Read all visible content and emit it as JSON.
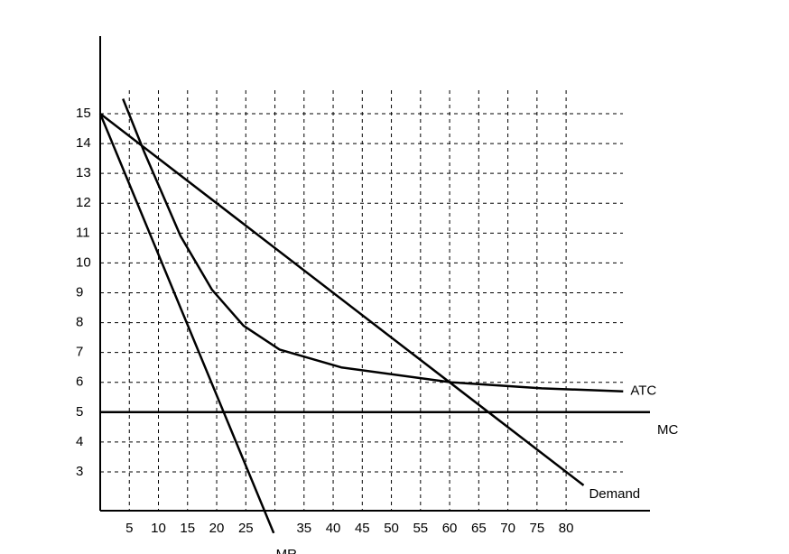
{
  "chart_data": {
    "type": "line",
    "xlim": [
      0,
      94.4
    ],
    "ylim": [
      1.7,
      17.6
    ],
    "xticks": [
      5,
      10,
      15,
      20,
      25,
      {
        "value": 30,
        "label": null
      },
      35,
      40,
      45,
      50,
      55,
      60,
      65,
      70,
      75,
      80
    ],
    "yticks": [
      3,
      4,
      5,
      6,
      7,
      8,
      9,
      10,
      11,
      12,
      13,
      14,
      15
    ],
    "grid": true,
    "series": [
      {
        "name": "Demand",
        "color": "#000000",
        "x": [
          0,
          83
        ],
        "values": [
          15,
          2.55
        ]
      },
      {
        "name": "MR",
        "color": "#000000",
        "x": [
          0,
          29.8
        ],
        "values": [
          15,
          0.95
        ]
      },
      {
        "name": "ATC",
        "color": "#000000",
        "x": [
          3.9,
          7.6,
          13.8,
          19.2,
          24.6,
          30.8,
          41.4,
          60.3,
          75.8,
          89.8
        ],
        "values": [
          15.5,
          13.7,
          10.9,
          9.1,
          7.9,
          7.1,
          6.5,
          6.0,
          5.8,
          5.7
        ]
      },
      {
        "name": "MC",
        "color": "#000000",
        "x": [
          0,
          94.4
        ],
        "values": [
          5,
          5
        ]
      }
    ]
  }
}
